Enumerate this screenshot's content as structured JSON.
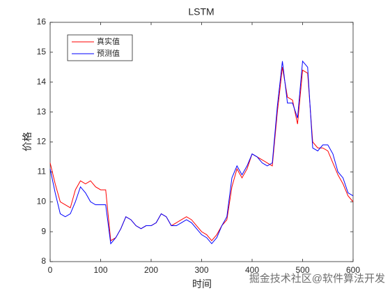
{
  "chart_data": {
    "type": "line",
    "title": "LSTM",
    "xlabel": "时间",
    "ylabel": "价格",
    "x": [
      0,
      10,
      20,
      30,
      40,
      50,
      60,
      70,
      80,
      90,
      100,
      110,
      120,
      130,
      140,
      150,
      160,
      170,
      180,
      190,
      200,
      210,
      220,
      230,
      240,
      250,
      260,
      270,
      280,
      290,
      300,
      310,
      320,
      330,
      340,
      350,
      360,
      370,
      380,
      390,
      400,
      410,
      420,
      430,
      440,
      450,
      460,
      470,
      480,
      490,
      500,
      510,
      520,
      530,
      540,
      550,
      560,
      570,
      580,
      590,
      600
    ],
    "series": [
      {
        "name": "真实值",
        "color": "#ff0000",
        "values": [
          11.3,
          10.6,
          10.0,
          9.9,
          9.8,
          10.4,
          10.7,
          10.6,
          10.7,
          10.5,
          10.4,
          10.4,
          8.7,
          8.8,
          9.1,
          9.5,
          9.4,
          9.2,
          9.1,
          9.2,
          9.2,
          9.3,
          9.6,
          9.5,
          9.2,
          9.3,
          9.4,
          9.5,
          9.4,
          9.2,
          9.0,
          8.9,
          8.7,
          8.9,
          9.2,
          9.4,
          10.5,
          11.1,
          10.8,
          11.1,
          11.6,
          11.5,
          11.4,
          11.3,
          11.2,
          13.0,
          14.5,
          13.5,
          13.4,
          12.6,
          14.4,
          14.3,
          12.0,
          11.8,
          11.8,
          11.7,
          11.3,
          10.9,
          10.6,
          10.2,
          10.0
        ]
      },
      {
        "name": "预测值",
        "color": "#0000ff",
        "values": [
          11.1,
          10.3,
          9.6,
          9.5,
          9.6,
          10.0,
          10.5,
          10.3,
          10.0,
          9.9,
          9.9,
          9.9,
          8.6,
          8.8,
          9.1,
          9.5,
          9.4,
          9.2,
          9.1,
          9.2,
          9.2,
          9.3,
          9.6,
          9.5,
          9.2,
          9.2,
          9.3,
          9.4,
          9.3,
          9.1,
          8.9,
          8.8,
          8.6,
          8.8,
          9.2,
          9.5,
          10.8,
          11.2,
          10.9,
          11.2,
          11.6,
          11.5,
          11.3,
          11.2,
          11.3,
          13.2,
          14.7,
          13.3,
          13.3,
          12.8,
          14.7,
          14.5,
          11.8,
          11.7,
          11.9,
          11.9,
          11.6,
          11.0,
          10.8,
          10.3,
          10.2
        ]
      }
    ],
    "xlim": [
      0,
      600
    ],
    "xticks": [
      0,
      100,
      200,
      300,
      400,
      500,
      600
    ],
    "ylim": [
      8,
      16
    ],
    "yticks": [
      8,
      9,
      10,
      11,
      12,
      13,
      14,
      15,
      16
    ],
    "grid": false,
    "legend": "upper left",
    "watermark": "掘金技术社区@软件算法开发"
  }
}
